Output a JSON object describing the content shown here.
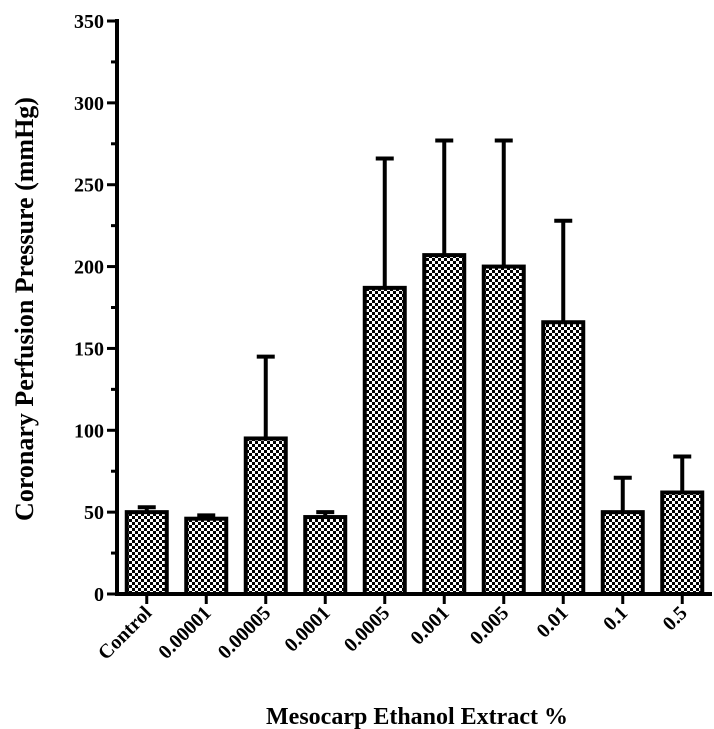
{
  "chart_data": {
    "type": "bar",
    "title": "",
    "xlabel": "Mesocarp Ethanol Extract %",
    "ylabel": "Coronary Perfusion Pressure (mmHg)",
    "categories": [
      "Control",
      "0.00001",
      "0.00005",
      "0.0001",
      "0.0005",
      "0.001",
      "0.005",
      "0.01",
      "0.1",
      "0.5"
    ],
    "values": [
      50,
      46,
      95,
      47,
      187,
      207,
      200,
      166,
      50,
      62
    ],
    "error_upper": [
      53,
      48,
      145,
      50,
      266,
      277,
      277,
      228,
      71,
      84
    ],
    "ylim": [
      0,
      350
    ],
    "yticks": [
      0,
      50,
      100,
      150,
      200,
      250,
      300,
      350
    ],
    "ytick_labels": [
      "0",
      "50",
      "100",
      "150",
      "200",
      "250",
      "300",
      "350"
    ],
    "grid": false,
    "legend": "none",
    "bar_fill": "checkerboard",
    "bar_fill_color": "#000000",
    "bar_edge_color": "#000000"
  }
}
